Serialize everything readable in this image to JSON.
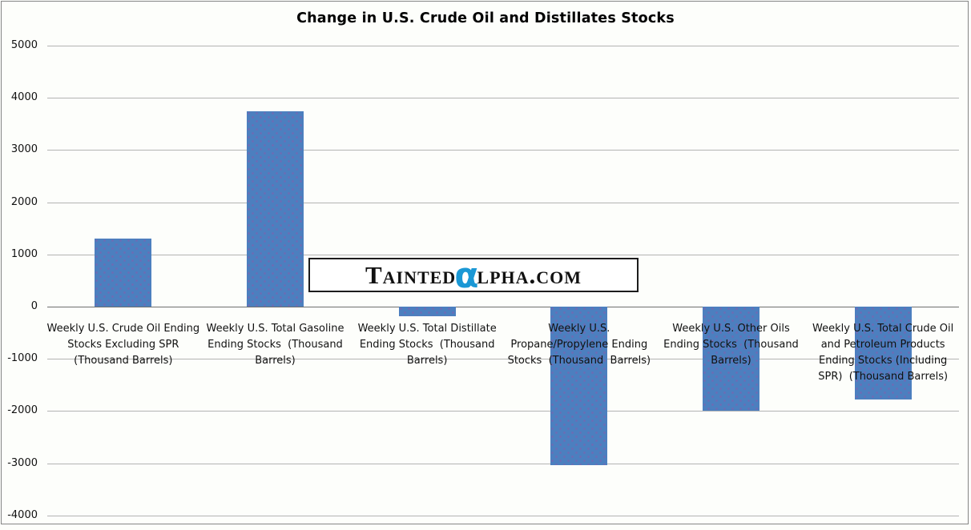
{
  "title": "Change in U.S. Crude Oil and Distillates Stocks",
  "watermark": {
    "prefix": "Tainted",
    "alpha": "α",
    "suffix": "lpha.com",
    "full_text": "TAINTEDαLPHA.COM"
  },
  "colors": {
    "bar_fill": "#4c7fbf",
    "bar_dot_pattern": "#8c5aaa",
    "gridline": "#b3b3b3",
    "zero_axis": "#6e6e6e",
    "chart_border": "#858585",
    "watermark_alpha_blue": "#1b98d5",
    "text": "#111111"
  },
  "chart_data": {
    "type": "bar",
    "title": "Change in U.S. Crude Oil and Distillates Stocks",
    "xlabel": "",
    "ylabel": "",
    "ylim": [
      -4000,
      5000
    ],
    "yticks": [
      5000,
      4000,
      3000,
      2000,
      1000,
      0,
      -1000,
      -2000,
      -3000,
      -4000
    ],
    "grid": true,
    "legend": "none",
    "bar_color": "#4c7fbf",
    "categories": [
      "Weekly U.S. Crude Oil Ending Stocks Excluding SPR (Thousand Barrels)",
      "Weekly U.S. Total Gasoline Ending Stocks  (Thousand Barrels)",
      "Weekly U.S. Total Distillate Ending Stocks  (Thousand Barrels)",
      "Weekly U.S. Propane/Propylene Ending Stocks  (Thousand Barrels)",
      "Weekly U.S. Other Oils Ending Stocks  (Thousand Barrels)",
      "Weekly U.S. Total Crude Oil and Petroleum Products Ending Stocks (Including SPR)  (Thousand Barrels)"
    ],
    "category_lines": [
      [
        "Weekly U.S. Crude Oil Ending",
        "Stocks Excluding SPR",
        "(Thousand Barrels)"
      ],
      [
        "Weekly U.S. Total Gasoline",
        "Ending Stocks  (Thousand",
        "Barrels)"
      ],
      [
        "Weekly U.S. Total Distillate",
        "Ending Stocks  (Thousand",
        "Barrels)"
      ],
      [
        "Weekly U.S.",
        "Propane/Propylene Ending",
        "Stocks  (Thousand  Barrels)"
      ],
      [
        "Weekly U.S. Other Oils",
        "Ending Stocks  (Thousand",
        "Barrels)"
      ],
      [
        "Weekly U.S. Total Crude Oil",
        "and Petroleum Products",
        "Ending Stocks (Including",
        "SPR)  (Thousand Barrels)"
      ]
    ],
    "values": [
      1310,
      3740,
      -180,
      -3030,
      -2000,
      -1785
    ]
  }
}
